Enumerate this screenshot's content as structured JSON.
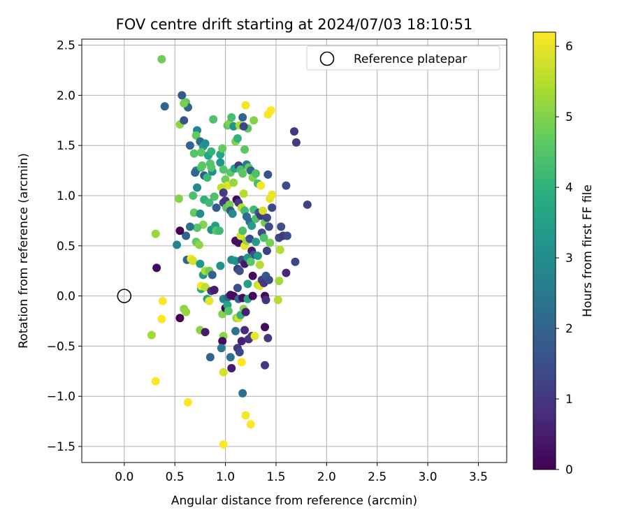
{
  "chart_data": {
    "type": "scatter",
    "title": "FOV centre drift starting at 2024/07/03 18:10:51",
    "xlabel": "Angular distance from reference (arcmin)",
    "ylabel": "Rotation from reference (arcmin)",
    "colorbar_label": "Hours from first FF file",
    "xlim": [
      -0.42,
      3.78
    ],
    "ylim": [
      -1.66,
      2.56
    ],
    "xticks": [
      0.0,
      0.5,
      1.0,
      1.5,
      2.0,
      2.5,
      3.0,
      3.5
    ],
    "yticks": [
      -1.5,
      -1.0,
      -0.5,
      0.0,
      0.5,
      1.0,
      1.5,
      2.0,
      2.5
    ],
    "colorbar_range": [
      0,
      6.2
    ],
    "colorbar_ticks": [
      0,
      1,
      2,
      3,
      4,
      5,
      6
    ],
    "colormap": "viridis",
    "grid": true,
    "legend_position": "top-right",
    "legend": [
      {
        "label": "Reference platepar",
        "marker": "open-circle"
      }
    ],
    "reference_point": {
      "x": 0.0,
      "y": 0.0
    },
    "points": [
      [
        0.37,
        2.36,
        4.8
      ],
      [
        0.4,
        1.89,
        2.0
      ],
      [
        0.57,
        2.0,
        1.8
      ],
      [
        0.61,
        1.93,
        4.6
      ],
      [
        0.63,
        1.88,
        2.0
      ],
      [
        0.59,
        1.92,
        4.9
      ],
      [
        0.55,
        1.71,
        5.1
      ],
      [
        0.59,
        1.75,
        1.6
      ],
      [
        0.65,
        1.5,
        2.0
      ],
      [
        0.72,
        1.65,
        2.8
      ],
      [
        0.71,
        1.6,
        4.7
      ],
      [
        0.75,
        1.54,
        2.1
      ],
      [
        0.69,
        1.42,
        4.5
      ],
      [
        0.78,
        1.49,
        3.4
      ],
      [
        0.8,
        1.52,
        3.0
      ],
      [
        0.76,
        1.43,
        4.6
      ],
      [
        0.83,
        1.4,
        3.6
      ],
      [
        0.85,
        1.32,
        4.5
      ],
      [
        0.88,
        1.76,
        4.4
      ],
      [
        0.86,
        1.44,
        4.0
      ],
      [
        0.71,
        1.25,
        3.1
      ],
      [
        0.7,
        1.23,
        2.0
      ],
      [
        0.76,
        1.28,
        4.4
      ],
      [
        0.77,
        1.3,
        4.6
      ],
      [
        0.79,
        1.2,
        1.8
      ],
      [
        0.82,
        1.18,
        4.2
      ],
      [
        0.87,
        1.24,
        3.0
      ],
      [
        0.86,
        1.28,
        4.5
      ],
      [
        0.95,
        1.41,
        3.6
      ],
      [
        0.97,
        1.47,
        4.7
      ],
      [
        0.95,
        1.33,
        3.2
      ],
      [
        0.98,
        1.26,
        4.5
      ],
      [
        1.02,
        1.7,
        4.6
      ],
      [
        1.04,
        1.72,
        5.0
      ],
      [
        1.06,
        1.78,
        4.3
      ],
      [
        1.08,
        1.69,
        3.2
      ],
      [
        1.1,
        1.54,
        5.0
      ],
      [
        1.12,
        1.57,
        4.0
      ],
      [
        1.14,
        1.7,
        5.4
      ],
      [
        1.17,
        1.78,
        2.0
      ],
      [
        1.19,
        1.46,
        4.6
      ],
      [
        1.2,
        1.9,
        6.1
      ],
      [
        1.22,
        1.67,
        4.6
      ],
      [
        1.18,
        1.69,
        1.3
      ],
      [
        1.28,
        1.75,
        5.0
      ],
      [
        1.42,
        1.81,
        6.1
      ],
      [
        1.45,
        1.85,
        6.2
      ],
      [
        1.68,
        1.64,
        1.0
      ],
      [
        1.7,
        1.53,
        1.1
      ],
      [
        1.0,
        1.16,
        4.8
      ],
      [
        1.02,
        1.1,
        5.9
      ],
      [
        1.05,
        1.23,
        4.6
      ],
      [
        1.08,
        1.13,
        5.2
      ],
      [
        1.09,
        1.27,
        3.6
      ],
      [
        1.13,
        1.3,
        1.2
      ],
      [
        1.15,
        1.26,
        4.3
      ],
      [
        1.17,
        1.22,
        4.6
      ],
      [
        1.21,
        1.31,
        2.6
      ],
      [
        1.23,
        1.28,
        4.7
      ],
      [
        1.25,
        1.25,
        2.0
      ],
      [
        1.27,
        1.18,
        5.0
      ],
      [
        1.3,
        1.22,
        4.4
      ],
      [
        1.32,
        1.12,
        4.3
      ],
      [
        1.35,
        1.1,
        6.1
      ],
      [
        1.42,
        1.21,
        1.6
      ],
      [
        1.44,
        0.97,
        6.0
      ],
      [
        1.46,
        1.01,
        6.0
      ],
      [
        1.6,
        1.1,
        1.4
      ],
      [
        1.81,
        0.91,
        1.2
      ],
      [
        0.54,
        0.97,
        5.0
      ],
      [
        0.68,
        1.0,
        4.4
      ],
      [
        0.72,
        1.08,
        2.9
      ],
      [
        0.79,
        0.96,
        4.0
      ],
      [
        0.84,
        0.93,
        4.2
      ],
      [
        0.89,
        0.99,
        4.4
      ],
      [
        0.91,
        0.88,
        1.8
      ],
      [
        0.96,
        1.08,
        5.6
      ],
      [
        0.98,
        1.03,
        1.1
      ],
      [
        0.98,
        0.93,
        1.1
      ],
      [
        1.0,
        0.95,
        0.9
      ],
      [
        1.01,
        0.88,
        4.5
      ],
      [
        1.04,
        0.91,
        4.9
      ],
      [
        1.05,
        0.85,
        1.5
      ],
      [
        1.07,
        0.82,
        3.0
      ],
      [
        1.11,
        0.96,
        0.1
      ],
      [
        1.13,
        0.93,
        1.0
      ],
      [
        1.16,
        0.88,
        5.5
      ],
      [
        1.18,
        1.02,
        5.5
      ],
      [
        1.19,
        0.85,
        4.2
      ],
      [
        1.21,
        0.79,
        2.2
      ],
      [
        1.24,
        0.74,
        2.2
      ],
      [
        1.26,
        0.7,
        3.4
      ],
      [
        1.28,
        0.86,
        4.2
      ],
      [
        1.3,
        0.77,
        4.4
      ],
      [
        1.33,
        0.83,
        1.6
      ],
      [
        1.35,
        0.8,
        1.0
      ],
      [
        1.37,
        0.85,
        5.8
      ],
      [
        1.39,
        0.73,
        4.8
      ],
      [
        1.41,
        0.78,
        1.3
      ],
      [
        1.43,
        0.69,
        1.4
      ],
      [
        1.46,
        0.88,
        1.3
      ],
      [
        0.69,
        0.83,
        4.7
      ],
      [
        0.75,
        0.82,
        3.0
      ],
      [
        0.78,
        0.71,
        5.0
      ],
      [
        0.72,
        0.68,
        4.5
      ],
      [
        0.65,
        0.69,
        2.3
      ],
      [
        0.61,
        0.6,
        2.0
      ],
      [
        0.55,
        0.65,
        0.0
      ],
      [
        0.52,
        0.51,
        2.8
      ],
      [
        0.31,
        0.62,
        5.2
      ],
      [
        0.32,
        0.28,
        0.1
      ],
      [
        0.71,
        0.54,
        4.7
      ],
      [
        0.74,
        0.51,
        5.1
      ],
      [
        0.86,
        0.66,
        3.3
      ],
      [
        0.9,
        0.7,
        3.5
      ],
      [
        0.91,
        0.65,
        4.6
      ],
      [
        0.94,
        0.65,
        4.2
      ],
      [
        1.1,
        0.55,
        0.2
      ],
      [
        1.13,
        0.53,
        0.3
      ],
      [
        1.15,
        0.6,
        5.8
      ],
      [
        1.17,
        0.65,
        4.4
      ],
      [
        1.19,
        0.5,
        6.0
      ],
      [
        1.21,
        0.55,
        5.2
      ],
      [
        1.24,
        0.57,
        1.4
      ],
      [
        1.26,
        0.45,
        0.4
      ],
      [
        1.28,
        0.41,
        1.5
      ],
      [
        1.3,
        0.54,
        3.4
      ],
      [
        1.32,
        0.4,
        3.3
      ],
      [
        1.34,
        0.31,
        5.5
      ],
      [
        1.36,
        0.63,
        1.4
      ],
      [
        1.38,
        0.58,
        4.4
      ],
      [
        1.41,
        0.45,
        1.2
      ],
      [
        1.44,
        0.53,
        4.9
      ],
      [
        1.53,
        0.58,
        1.3
      ],
      [
        1.55,
        0.69,
        1.5
      ],
      [
        1.57,
        0.6,
        1.0
      ],
      [
        1.61,
        0.6,
        1.4
      ],
      [
        1.69,
        0.34,
        1.3
      ],
      [
        1.54,
        0.46,
        5.5
      ],
      [
        0.62,
        0.36,
        2.0
      ],
      [
        0.66,
        0.37,
        6.1
      ],
      [
        0.68,
        0.35,
        5.8
      ],
      [
        0.75,
        0.32,
        3.2
      ],
      [
        0.78,
        0.21,
        3.3
      ],
      [
        0.8,
        0.25,
        5.4
      ],
      [
        0.84,
        0.25,
        4.8
      ],
      [
        0.87,
        0.21,
        1.9
      ],
      [
        0.95,
        0.3,
        3.1
      ],
      [
        1.06,
        0.36,
        3.0
      ],
      [
        1.1,
        0.35,
        3.2
      ],
      [
        1.12,
        0.27,
        1.1
      ],
      [
        1.14,
        0.25,
        1.5
      ],
      [
        1.16,
        0.36,
        1.4
      ],
      [
        1.19,
        0.32,
        0.4
      ],
      [
        1.22,
        0.38,
        3.2
      ],
      [
        1.25,
        0.34,
        4.6
      ],
      [
        1.27,
        0.2,
        0.2
      ],
      [
        1.32,
        0.11,
        5.6
      ],
      [
        1.34,
        0.1,
        5.9
      ],
      [
        1.36,
        0.16,
        1.2
      ],
      [
        1.38,
        0.13,
        1.0
      ],
      [
        1.4,
        0.2,
        1.7
      ],
      [
        1.43,
        0.16,
        1.4
      ],
      [
        1.53,
        0.15,
        5.3
      ],
      [
        1.52,
        -0.04,
        5.5
      ],
      [
        1.6,
        0.23,
        0.7
      ],
      [
        0.76,
        0.07,
        3.8
      ],
      [
        0.76,
        0.1,
        6.1
      ],
      [
        0.8,
        0.09,
        5.6
      ],
      [
        0.86,
        0.05,
        1.0
      ],
      [
        0.89,
        0.06,
        0.5
      ],
      [
        0.82,
        -0.03,
        3.5
      ],
      [
        0.84,
        -0.05,
        6.0
      ],
      [
        0.98,
        -0.03,
        2.8
      ],
      [
        1.03,
        -0.01,
        1.8
      ],
      [
        1.05,
        0.01,
        0.3
      ],
      [
        1.08,
        0.0,
        0.1
      ],
      [
        1.12,
        0.08,
        1.5
      ],
      [
        1.13,
        -0.03,
        2.0
      ],
      [
        1.17,
        -0.02,
        0.2
      ],
      [
        1.22,
        0.12,
        3.5
      ],
      [
        1.22,
        -0.03,
        3.6
      ],
      [
        1.27,
        0.0,
        0.1
      ],
      [
        1.39,
        0.0,
        0.2
      ],
      [
        1.4,
        -0.04,
        0.9
      ],
      [
        0.38,
        -0.05,
        6.2
      ],
      [
        0.37,
        -0.23,
        6.2
      ],
      [
        0.55,
        -0.22,
        0.0
      ],
      [
        0.59,
        -0.13,
        5.1
      ],
      [
        0.61,
        -0.16,
        5.2
      ],
      [
        0.27,
        -0.39,
        5.3
      ],
      [
        0.75,
        -0.34,
        5.1
      ],
      [
        0.8,
        -0.36,
        0.5
      ],
      [
        0.97,
        -0.18,
        5.0
      ],
      [
        0.98,
        -0.4,
        5.1
      ],
      [
        1.0,
        -0.12,
        0.1
      ],
      [
        1.02,
        -0.09,
        3.6
      ],
      [
        1.03,
        -0.15,
        4.5
      ],
      [
        1.11,
        -0.22,
        5.1
      ],
      [
        1.13,
        -0.22,
        5.8
      ],
      [
        1.15,
        -0.19,
        4.0
      ],
      [
        1.18,
        -0.13,
        5.1
      ],
      [
        1.2,
        -0.16,
        0.6
      ],
      [
        1.1,
        -0.35,
        2.4
      ],
      [
        1.16,
        -0.45,
        0.6
      ],
      [
        1.19,
        -0.34,
        0.8
      ],
      [
        1.23,
        -0.43,
        0.9
      ],
      [
        1.26,
        -0.4,
        1.1
      ],
      [
        1.29,
        -0.4,
        6.0
      ],
      [
        1.39,
        -0.31,
        0.2
      ],
      [
        1.42,
        -0.42,
        1.0
      ],
      [
        0.97,
        -0.45,
        0.2
      ],
      [
        0.96,
        -0.52,
        2.5
      ],
      [
        0.85,
        -0.61,
        2.0
      ],
      [
        1.12,
        -0.52,
        1.0
      ],
      [
        1.14,
        -0.56,
        1.3
      ],
      [
        1.16,
        -0.66,
        6.2
      ],
      [
        1.05,
        -0.61,
        2.3
      ],
      [
        1.06,
        -0.72,
        0.5
      ],
      [
        1.39,
        -0.69,
        1.0
      ],
      [
        0.98,
        -0.76,
        5.8
      ],
      [
        1.17,
        -0.97,
        2.3
      ],
      [
        0.31,
        -0.85,
        6.2
      ],
      [
        0.63,
        -1.06,
        6.2
      ],
      [
        1.2,
        -1.19,
        6.1
      ],
      [
        1.25,
        -1.28,
        6.2
      ],
      [
        0.98,
        -1.48,
        6.2
      ]
    ]
  }
}
